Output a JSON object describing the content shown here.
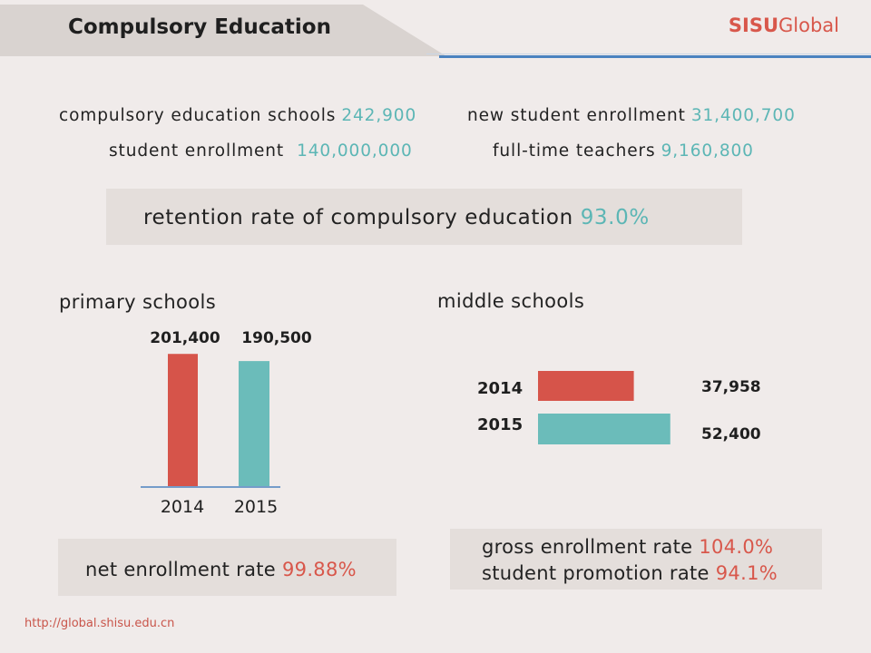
{
  "header": {
    "title": "Compulsory Education",
    "brand_primary": "SISU",
    "brand_secondary": "Global"
  },
  "colors": {
    "background": "#f0ebea",
    "panel": "#e4dedb",
    "teal": "#5cb6b5",
    "coral": "#d8574b",
    "bar_red": "#d6544a",
    "bar_teal": "#6bbcba",
    "rule_blue": "#4a82c0"
  },
  "stats": [
    {
      "label": "compulsory education schools",
      "value": "242,900"
    },
    {
      "label": "new student enrollment",
      "value": "31,400,700"
    },
    {
      "label": "student enrollment",
      "value": "140,000,000"
    },
    {
      "label": "full-time teachers",
      "value": "9,160,800"
    }
  ],
  "retention": {
    "label": "retention rate of compulsory education",
    "value": "93.0%"
  },
  "primary": {
    "net_enrollment": {
      "label": "net enrollment rate",
      "value": "99.88%"
    }
  },
  "middle": {
    "rates": [
      {
        "label": "gross enrollment rate",
        "value": "104.0%"
      },
      {
        "label": "student promotion rate",
        "value": "94.1%"
      }
    ]
  },
  "chart_data": [
    {
      "type": "bar",
      "orientation": "vertical",
      "title": "primary schools",
      "categories": [
        "2014",
        "2015"
      ],
      "values": [
        201400,
        190500
      ],
      "value_labels": [
        "201,400",
        "190,500"
      ],
      "colors": [
        "#d6544a",
        "#6bbcba"
      ],
      "ylim": [
        0,
        210000
      ],
      "grid": false,
      "xlabel": "",
      "ylabel": ""
    },
    {
      "type": "bar",
      "orientation": "horizontal",
      "title": "middle schools",
      "categories": [
        "2014",
        "2015"
      ],
      "values": [
        37958,
        52400
      ],
      "value_labels": [
        "37,958",
        "52,400"
      ],
      "colors": [
        "#d6544a",
        "#6bbcba"
      ],
      "xlim": [
        0,
        55000
      ],
      "grid": false,
      "xlabel": "",
      "ylabel": ""
    }
  ],
  "footer": {
    "url": "http://global.shisu.edu.cn"
  }
}
